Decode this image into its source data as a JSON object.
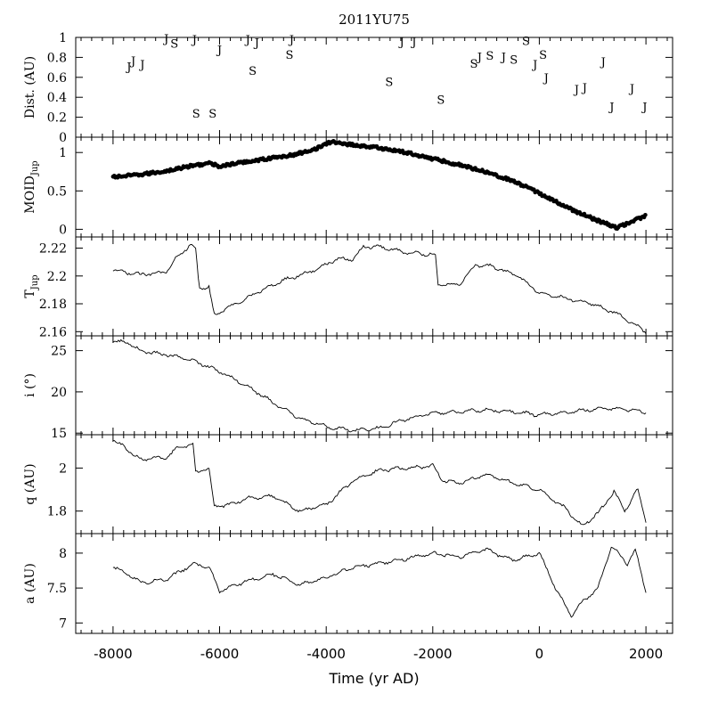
{
  "chart_data": {
    "type": "line",
    "title": "2011YU75",
    "xlabel": "Time (yr AD)",
    "xlim": [
      -8700,
      2500
    ],
    "xticks": [
      -8000,
      -6000,
      -4000,
      -2000,
      0,
      2000
    ],
    "xtick_labels": [
      "-8000",
      "-6000",
      "-4000",
      "-2000",
      "0",
      "2000"
    ],
    "panels": [
      {
        "id": "dist",
        "type": "scatter-text",
        "ylabel": "Dist. (AU)",
        "ylim": [
          0,
          1
        ],
        "yticks": [
          0,
          0.2,
          0.4,
          0.6,
          0.8,
          1
        ],
        "ytick_labels": [
          "0",
          "0.2",
          "0.4",
          "0.6",
          "0.8",
          "1"
        ],
        "points": [
          {
            "t": -7700,
            "d": 0.71,
            "l": "J"
          },
          {
            "t": -7620,
            "d": 0.77,
            "l": "J"
          },
          {
            "t": -7450,
            "d": 0.73,
            "l": "J"
          },
          {
            "t": -7000,
            "d": 0.99,
            "l": "J"
          },
          {
            "t": -6850,
            "d": 0.94,
            "l": "S"
          },
          {
            "t": -6470,
            "d": 0.98,
            "l": "J"
          },
          {
            "t": -6440,
            "d": 0.24,
            "l": "S"
          },
          {
            "t": -6130,
            "d": 0.24,
            "l": "S"
          },
          {
            "t": -6000,
            "d": 0.88,
            "l": "J"
          },
          {
            "t": -5470,
            "d": 0.98,
            "l": "J"
          },
          {
            "t": -5300,
            "d": 0.95,
            "l": "J"
          },
          {
            "t": -5380,
            "d": 0.67,
            "l": "S"
          },
          {
            "t": -4690,
            "d": 0.83,
            "l": "S"
          },
          {
            "t": -4650,
            "d": 0.98,
            "l": "J"
          },
          {
            "t": -2820,
            "d": 0.56,
            "l": "S"
          },
          {
            "t": -2580,
            "d": 0.96,
            "l": "J"
          },
          {
            "t": -2350,
            "d": 0.96,
            "l": "J"
          },
          {
            "t": -1850,
            "d": 0.38,
            "l": "S"
          },
          {
            "t": -1230,
            "d": 0.74,
            "l": "S"
          },
          {
            "t": -1120,
            "d": 0.81,
            "l": "J"
          },
          {
            "t": -930,
            "d": 0.82,
            "l": "S"
          },
          {
            "t": -670,
            "d": 0.81,
            "l": "J"
          },
          {
            "t": -480,
            "d": 0.78,
            "l": "S"
          },
          {
            "t": -250,
            "d": 0.97,
            "l": "S"
          },
          {
            "t": -80,
            "d": 0.73,
            "l": "J"
          },
          {
            "t": 70,
            "d": 0.83,
            "l": "S"
          },
          {
            "t": 130,
            "d": 0.6,
            "l": "J"
          },
          {
            "t": 700,
            "d": 0.48,
            "l": "J"
          },
          {
            "t": 850,
            "d": 0.5,
            "l": "J"
          },
          {
            "t": 1200,
            "d": 0.76,
            "l": "J"
          },
          {
            "t": 1360,
            "d": 0.31,
            "l": "J"
          },
          {
            "t": 1740,
            "d": 0.49,
            "l": "J"
          },
          {
            "t": 1980,
            "d": 0.31,
            "l": "J"
          }
        ]
      },
      {
        "id": "moid",
        "type": "dots",
        "ylabel": "MOID",
        "ylabel_sub": "Jup",
        "ylim": [
          -0.1,
          1.2
        ],
        "yticks": [
          0,
          0.5,
          1
        ],
        "ytick_labels": [
          "0",
          "0.5",
          "1"
        ],
        "anchors": [
          [
            -8000,
            0.68
          ],
          [
            -7500,
            0.71
          ],
          [
            -7000,
            0.76
          ],
          [
            -6500,
            0.83
          ],
          [
            -6200,
            0.86
          ],
          [
            -6000,
            0.82
          ],
          [
            -5500,
            0.88
          ],
          [
            -5000,
            0.93
          ],
          [
            -4600,
            0.97
          ],
          [
            -4200,
            1.05
          ],
          [
            -3900,
            1.14
          ],
          [
            -3500,
            1.1
          ],
          [
            -3000,
            1.06
          ],
          [
            -2500,
            1.0
          ],
          [
            -2000,
            0.92
          ],
          [
            -1500,
            0.84
          ],
          [
            -1000,
            0.75
          ],
          [
            -500,
            0.63
          ],
          [
            0,
            0.47
          ],
          [
            500,
            0.29
          ],
          [
            1000,
            0.14
          ],
          [
            1450,
            0.02
          ],
          [
            1700,
            0.09
          ],
          [
            2000,
            0.18
          ]
        ]
      },
      {
        "id": "tjup",
        "type": "line",
        "ylabel": "T",
        "ylabel_sub": "Jup",
        "ylim": [
          2.157,
          2.228
        ],
        "yticks": [
          2.16,
          2.18,
          2.2,
          2.22
        ],
        "ytick_labels": [
          "2.16",
          "2.18",
          "2.2",
          "2.22"
        ],
        "anchors": [
          [
            -8000,
            2.204
          ],
          [
            -7500,
            2.201
          ],
          [
            -7000,
            2.203
          ],
          [
            -6800,
            2.214
          ],
          [
            -6550,
            2.222
          ],
          [
            -6450,
            2.219
          ],
          [
            -6380,
            2.191
          ],
          [
            -6200,
            2.192
          ],
          [
            -6100,
            2.172
          ],
          [
            -5800,
            2.178
          ],
          [
            -5300,
            2.188
          ],
          [
            -4800,
            2.197
          ],
          [
            -4300,
            2.203
          ],
          [
            -3800,
            2.212
          ],
          [
            -3500,
            2.212
          ],
          [
            -3300,
            2.221
          ],
          [
            -3000,
            2.221
          ],
          [
            -2500,
            2.217
          ],
          [
            -1950,
            2.215
          ],
          [
            -1900,
            2.194
          ],
          [
            -1500,
            2.194
          ],
          [
            -1200,
            2.208
          ],
          [
            -900,
            2.207
          ],
          [
            -400,
            2.2
          ],
          [
            0,
            2.188
          ],
          [
            500,
            2.184
          ],
          [
            1000,
            2.18
          ],
          [
            1500,
            2.172
          ],
          [
            2000,
            2.16
          ]
        ]
      },
      {
        "id": "incl",
        "type": "line",
        "ylabel": "i (°)",
        "ylim": [
          14.8,
          26.8
        ],
        "yticks": [
          15,
          20,
          25
        ],
        "ytick_labels": [
          "15",
          "20",
          "25"
        ],
        "anchors": [
          [
            -8000,
            26.1
          ],
          [
            -7700,
            26.0
          ],
          [
            -7500,
            25.0
          ],
          [
            -7000,
            24.5
          ],
          [
            -6500,
            23.8
          ],
          [
            -6000,
            22.5
          ],
          [
            -5500,
            20.8
          ],
          [
            -5000,
            18.7
          ],
          [
            -4500,
            16.8
          ],
          [
            -4000,
            15.8
          ],
          [
            -3500,
            15.3
          ],
          [
            -3000,
            15.6
          ],
          [
            -2500,
            16.7
          ],
          [
            -2000,
            17.4
          ],
          [
            -1500,
            17.6
          ],
          [
            -1000,
            17.8
          ],
          [
            -500,
            17.6
          ],
          [
            0,
            17.2
          ],
          [
            500,
            17.5
          ],
          [
            1000,
            17.9
          ],
          [
            1500,
            18.0
          ],
          [
            2000,
            17.5
          ]
        ]
      },
      {
        "id": "q",
        "type": "line",
        "ylabel": "q (AU)",
        "ylim": [
          1.695,
          2.155
        ],
        "yticks": [
          1.8,
          2
        ],
        "ytick_labels": [
          "1.8",
          "2"
        ],
        "anchors": [
          [
            -8000,
            2.13
          ],
          [
            -7800,
            2.1
          ],
          [
            -7500,
            2.04
          ],
          [
            -7000,
            2.05
          ],
          [
            -6800,
            2.09
          ],
          [
            -6500,
            2.11
          ],
          [
            -6450,
            1.98
          ],
          [
            -6200,
            2.0
          ],
          [
            -6100,
            1.82
          ],
          [
            -5800,
            1.83
          ],
          [
            -5500,
            1.86
          ],
          [
            -5000,
            1.87
          ],
          [
            -4500,
            1.8
          ],
          [
            -4000,
            1.83
          ],
          [
            -3500,
            1.94
          ],
          [
            -3000,
            1.99
          ],
          [
            -2500,
            2.0
          ],
          [
            -2000,
            2.01
          ],
          [
            -1800,
            1.94
          ],
          [
            -1500,
            1.93
          ],
          [
            -1000,
            1.97
          ],
          [
            -500,
            1.93
          ],
          [
            0,
            1.9
          ],
          [
            500,
            1.81
          ],
          [
            800,
            1.73
          ],
          [
            1100,
            1.79
          ],
          [
            1400,
            1.89
          ],
          [
            1600,
            1.8
          ],
          [
            1850,
            1.9
          ],
          [
            2000,
            1.75
          ]
        ]
      },
      {
        "id": "a",
        "type": "line",
        "ylabel": "a (AU)",
        "ylim": [
          6.85,
          8.28
        ],
        "yticks": [
          7,
          7.5,
          8
        ],
        "ytick_labels": [
          "7",
          "7.5",
          "8"
        ],
        "anchors": [
          [
            -8000,
            7.8
          ],
          [
            -7700,
            7.7
          ],
          [
            -7500,
            7.58
          ],
          [
            -7000,
            7.62
          ],
          [
            -6500,
            7.85
          ],
          [
            -6200,
            7.8
          ],
          [
            -6000,
            7.45
          ],
          [
            -5500,
            7.6
          ],
          [
            -5000,
            7.7
          ],
          [
            -4500,
            7.55
          ],
          [
            -4000,
            7.65
          ],
          [
            -3500,
            7.8
          ],
          [
            -3000,
            7.85
          ],
          [
            -2500,
            7.92
          ],
          [
            -2000,
            8.0
          ],
          [
            -1500,
            7.95
          ],
          [
            -1000,
            8.05
          ],
          [
            -500,
            7.9
          ],
          [
            0,
            8.0
          ],
          [
            300,
            7.5
          ],
          [
            600,
            7.1
          ],
          [
            800,
            7.3
          ],
          [
            1100,
            7.5
          ],
          [
            1350,
            8.1
          ],
          [
            1650,
            7.85
          ],
          [
            1800,
            8.05
          ],
          [
            2000,
            7.45
          ]
        ]
      }
    ]
  }
}
